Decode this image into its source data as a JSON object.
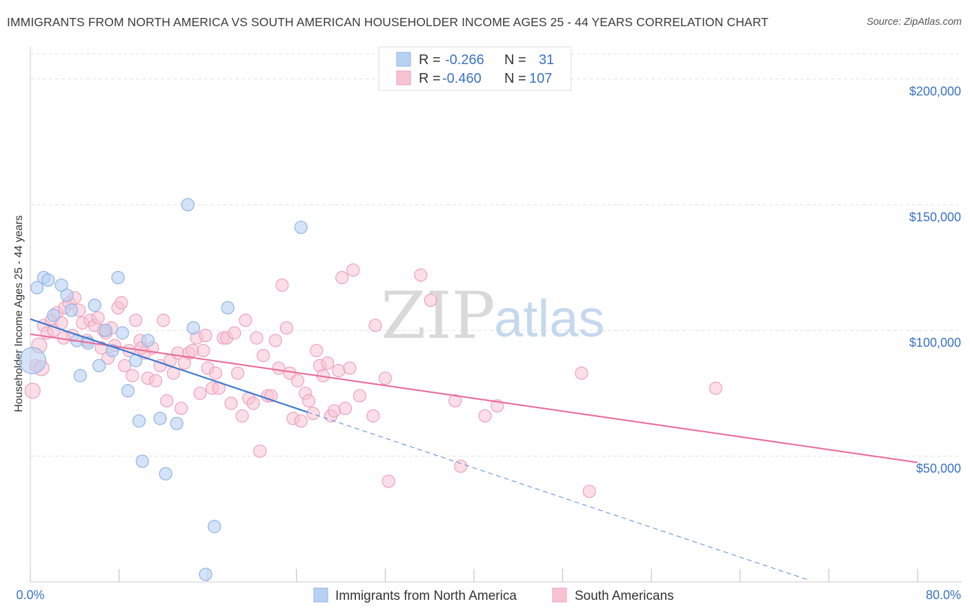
{
  "title": "IMMIGRANTS FROM NORTH AMERICA VS SOUTH AMERICAN HOUSEHOLDER INCOME AGES 25 - 44 YEARS CORRELATION CHART",
  "source": "Source: ZipAtlas.com",
  "watermark": {
    "zip": "ZIP",
    "atlas": "atlas"
  },
  "legend": {
    "rows": [
      {
        "r_label": "R =",
        "r_value": "-0.266",
        "n_label": "N =",
        "n_value": "31"
      },
      {
        "r_label": "R =",
        "r_value": "-0.460",
        "n_label": "N =",
        "n_value": "107"
      }
    ]
  },
  "colors": {
    "blue_fill": "#b7d1f2",
    "blue_stroke": "#8fb3e6",
    "blue_line": "#3b78d0",
    "pink_fill": "#f7c3d3",
    "pink_stroke": "#eda1bb",
    "pink_line": "#e8709a",
    "axis_text": "#3a72c4",
    "grid": "#e0e0e0"
  },
  "chart_data": {
    "type": "scatter",
    "title": "IMMIGRANTS FROM NORTH AMERICA VS SOUTH AMERICAN HOUSEHOLDER INCOME AGES 25 - 44 YEARS CORRELATION CHART",
    "xlabel": "",
    "ylabel": "Householder Income Ages 25 - 44 years",
    "xlim": [
      0,
      80
    ],
    "ylim": [
      0,
      210000
    ],
    "x_tick_labels": [
      "0.0%",
      "80.0%"
    ],
    "y_ticks": [
      {
        "value": 50000,
        "label": "$50,000"
      },
      {
        "value": 100000,
        "label": "$100,000"
      },
      {
        "value": 150000,
        "label": "$150,000"
      },
      {
        "value": 200000,
        "label": "$200,000"
      }
    ],
    "grid": true,
    "legend_position": "top-center",
    "series": [
      {
        "name": "Immigrants from North America",
        "color": "blue",
        "points": [
          [
            0.2,
            88000
          ],
          [
            0.6,
            117000
          ],
          [
            1.2,
            121000
          ],
          [
            1.6,
            120000
          ],
          [
            2.1,
            106000
          ],
          [
            2.8,
            118000
          ],
          [
            3.3,
            114000
          ],
          [
            3.7,
            108000
          ],
          [
            4.2,
            96000
          ],
          [
            4.5,
            82000
          ],
          [
            5.2,
            95000
          ],
          [
            5.8,
            110000
          ],
          [
            6.2,
            86000
          ],
          [
            6.8,
            100000
          ],
          [
            7.4,
            92000
          ],
          [
            7.9,
            121000
          ],
          [
            8.3,
            99000
          ],
          [
            8.8,
            76000
          ],
          [
            9.5,
            88000
          ],
          [
            9.8,
            64000
          ],
          [
            10.1,
            48000
          ],
          [
            10.6,
            96000
          ],
          [
            11.7,
            65000
          ],
          [
            12.2,
            43000
          ],
          [
            13.2,
            63000
          ],
          [
            14.2,
            150000
          ],
          [
            14.7,
            101000
          ],
          [
            15.8,
            3000
          ],
          [
            16.6,
            22000
          ],
          [
            17.8,
            109000
          ],
          [
            24.4,
            141000
          ]
        ],
        "trend": {
          "x": [
            0,
            25
          ],
          "y": [
            104500,
            67500
          ]
        },
        "trend_extension": {
          "x": [
            25,
            70
          ],
          "y": [
            67500,
            1000
          ]
        }
      },
      {
        "name": "South Americans",
        "color": "pink",
        "points": [
          [
            0.2,
            76000
          ],
          [
            0.5,
            86000
          ],
          [
            0.8,
            94000
          ],
          [
            1.2,
            102000
          ],
          [
            1.5,
            99000
          ],
          [
            1.9,
            104000
          ],
          [
            2.1,
            100000
          ],
          [
            2.4,
            107000
          ],
          [
            2.8,
            103000
          ],
          [
            3.1,
            109000
          ],
          [
            3.5,
            111000
          ],
          [
            3.8,
            98000
          ],
          [
            4.0,
            113000
          ],
          [
            4.4,
            108000
          ],
          [
            4.7,
            103000
          ],
          [
            5.1,
            96000
          ],
          [
            5.4,
            104000
          ],
          [
            5.8,
            102000
          ],
          [
            6.1,
            105000
          ],
          [
            6.4,
            93000
          ],
          [
            6.8,
            99000
          ],
          [
            7.0,
            89000
          ],
          [
            7.3,
            101000
          ],
          [
            7.6,
            94000
          ],
          [
            7.9,
            109000
          ],
          [
            8.2,
            111000
          ],
          [
            8.5,
            86000
          ],
          [
            8.9,
            92000
          ],
          [
            9.2,
            82000
          ],
          [
            9.5,
            104000
          ],
          [
            9.9,
            96000
          ],
          [
            10.3,
            91000
          ],
          [
            10.6,
            81000
          ],
          [
            11.0,
            93000
          ],
          [
            11.3,
            80000
          ],
          [
            11.7,
            86000
          ],
          [
            12.0,
            104000
          ],
          [
            12.3,
            72000
          ],
          [
            12.6,
            88000
          ],
          [
            12.9,
            83000
          ],
          [
            13.3,
            91000
          ],
          [
            13.6,
            69000
          ],
          [
            13.9,
            87000
          ],
          [
            14.3,
            91000
          ],
          [
            14.6,
            92000
          ],
          [
            15.0,
            97000
          ],
          [
            15.3,
            75000
          ],
          [
            15.6,
            92000
          ],
          [
            16.0,
            85000
          ],
          [
            16.4,
            77000
          ],
          [
            16.7,
            83000
          ],
          [
            17.0,
            77000
          ],
          [
            17.4,
            97000
          ],
          [
            17.7,
            97000
          ],
          [
            18.1,
            71000
          ],
          [
            18.4,
            99000
          ],
          [
            18.7,
            83000
          ],
          [
            19.1,
            66000
          ],
          [
            19.4,
            104000
          ],
          [
            19.7,
            73000
          ],
          [
            20.1,
            71000
          ],
          [
            20.4,
            97000
          ],
          [
            20.7,
            52000
          ],
          [
            21.0,
            90000
          ],
          [
            21.4,
            74000
          ],
          [
            21.7,
            74000
          ],
          [
            22.1,
            96000
          ],
          [
            22.4,
            85000
          ],
          [
            22.7,
            118000
          ],
          [
            23.1,
            101000
          ],
          [
            23.4,
            83000
          ],
          [
            23.7,
            65000
          ],
          [
            24.1,
            80000
          ],
          [
            24.4,
            64000
          ],
          [
            24.8,
            75000
          ],
          [
            25.1,
            72000
          ],
          [
            25.5,
            67000
          ],
          [
            25.8,
            92000
          ],
          [
            26.1,
            86000
          ],
          [
            26.4,
            82000
          ],
          [
            26.8,
            87000
          ],
          [
            27.1,
            66000
          ],
          [
            27.4,
            68000
          ],
          [
            27.8,
            84000
          ],
          [
            28.1,
            121000
          ],
          [
            28.4,
            69000
          ],
          [
            28.8,
            85000
          ],
          [
            29.1,
            124000
          ],
          [
            29.7,
            74000
          ],
          [
            30.9,
            66000
          ],
          [
            31.1,
            102000
          ],
          [
            32.0,
            81000
          ],
          [
            32.3,
            40000
          ],
          [
            35.2,
            122000
          ],
          [
            36.1,
            112000
          ],
          [
            38.3,
            72000
          ],
          [
            38.8,
            46000
          ],
          [
            41.0,
            66000
          ],
          [
            42.1,
            70000
          ],
          [
            49.7,
            83000
          ],
          [
            50.4,
            36000
          ],
          [
            61.8,
            77000
          ],
          [
            1.0,
            85000
          ],
          [
            3.0,
            97000
          ],
          [
            6.6,
            100000
          ],
          [
            10.0,
            93000
          ],
          [
            15.8,
            98000
          ]
        ],
        "trend": {
          "x": [
            0,
            80
          ],
          "y": [
            98500,
            47500
          ]
        }
      }
    ]
  },
  "bottom_legend": {
    "series_1_label": "Immigrants from North America",
    "series_2_label": "South Americans"
  }
}
